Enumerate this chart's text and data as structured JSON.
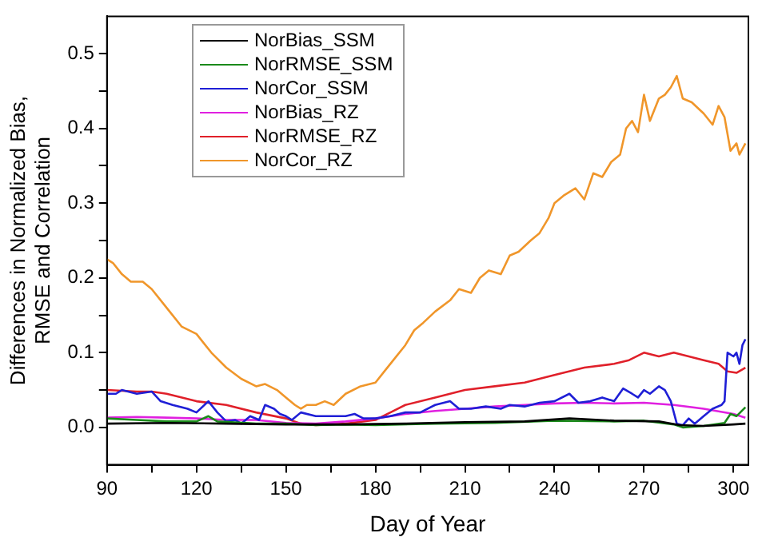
{
  "chart_data": {
    "type": "line",
    "xlabel": "Day of Year",
    "ylabel": "Differences in Normalized Bias,\nRMSE and Correlation",
    "xlim": [
      90,
      305
    ],
    "ylim": [
      -0.05,
      0.55
    ],
    "xticks": [
      90,
      {
        "value": 105,
        "label": null
      },
      120,
      {
        "value": 135,
        "label": null
      },
      150,
      {
        "value": 165,
        "label": null
      },
      180,
      {
        "value": 195,
        "label": null
      },
      210,
      {
        "value": 225,
        "label": null
      },
      240,
      {
        "value": 255,
        "label": null
      },
      270,
      {
        "value": 285,
        "label": null
      },
      300
    ],
    "yticks": [
      {
        "value": 0,
        "label": "0.0"
      },
      {
        "value": 0.05,
        "label": null
      },
      0.1,
      {
        "value": 0.15,
        "label": null
      },
      0.2,
      {
        "value": 0.25,
        "label": null
      },
      0.3,
      {
        "value": 0.35,
        "label": null
      },
      0.4,
      {
        "value": 0.45,
        "label": null
      },
      0.5
    ],
    "grid": false,
    "legend": "top left",
    "marker": "none",
    "line_style": "solid",
    "series": [
      {
        "name": "NorBias_SSM",
        "color": "#000000",
        "x": [
          90,
          110,
          130,
          150,
          170,
          190,
          210,
          230,
          245,
          260,
          275,
          282,
          290,
          300,
          304
        ],
        "values": [
          0.005,
          0.006,
          0.005,
          0.004,
          0.004,
          0.005,
          0.007,
          0.008,
          0.012,
          0.009,
          0.008,
          0.003,
          0.002,
          0.004,
          0.005
        ]
      },
      {
        "name": "NorRMSE_SSM",
        "color": "#1a8a1a",
        "x": [
          90,
          100,
          110,
          120,
          124,
          127,
          140,
          150,
          160,
          170,
          180,
          200,
          220,
          240,
          260,
          270,
          280,
          283,
          290,
          297,
          299,
          301,
          304
        ],
        "values": [
          0.012,
          0.01,
          0.008,
          0.008,
          0.015,
          0.008,
          0.005,
          0.005,
          0.003,
          0.004,
          0.003,
          0.005,
          0.006,
          0.009,
          0.008,
          0.009,
          0.004,
          0.0,
          0.002,
          0.006,
          0.018,
          0.015,
          0.027
        ]
      },
      {
        "name": "NorCor_SSM",
        "color": "#1f1fd6",
        "x": [
          90,
          93,
          95,
          100,
          105,
          108,
          112,
          117,
          120,
          124,
          127,
          130,
          133,
          135,
          138,
          141,
          143,
          146,
          148,
          150,
          152,
          155,
          160,
          170,
          173,
          176,
          180,
          185,
          190,
          195,
          200,
          205,
          208,
          212,
          217,
          222,
          225,
          230,
          235,
          240,
          245,
          248,
          252,
          256,
          260,
          263,
          266,
          268,
          270,
          272,
          275,
          277,
          279,
          281,
          283,
          285,
          287,
          290,
          293,
          296,
          297,
          298,
          300,
          301,
          302,
          303,
          304
        ],
        "values": [
          0.045,
          0.045,
          0.05,
          0.045,
          0.048,
          0.035,
          0.03,
          0.025,
          0.02,
          0.035,
          0.02,
          0.008,
          0.01,
          0.005,
          0.015,
          0.01,
          0.03,
          0.025,
          0.018,
          0.015,
          0.01,
          0.02,
          0.015,
          0.015,
          0.018,
          0.012,
          0.012,
          0.015,
          0.02,
          0.02,
          0.03,
          0.035,
          0.025,
          0.025,
          0.028,
          0.025,
          0.03,
          0.028,
          0.033,
          0.035,
          0.045,
          0.033,
          0.035,
          0.04,
          0.035,
          0.052,
          0.045,
          0.04,
          0.05,
          0.045,
          0.055,
          0.05,
          0.035,
          0.005,
          0.003,
          0.012,
          0.005,
          0.015,
          0.025,
          0.03,
          0.035,
          0.1,
          0.095,
          0.1,
          0.085,
          0.11,
          0.118
        ]
      },
      {
        "name": "NorBias_RZ",
        "color": "#e020e0",
        "x": [
          90,
          100,
          110,
          120,
          130,
          140,
          150,
          160,
          170,
          180,
          190,
          200,
          210,
          220,
          230,
          240,
          250,
          260,
          270,
          280,
          290,
          300,
          304
        ],
        "values": [
          0.013,
          0.014,
          0.013,
          0.012,
          0.01,
          0.01,
          0.006,
          0.005,
          0.008,
          0.012,
          0.018,
          0.022,
          0.025,
          0.028,
          0.03,
          0.032,
          0.033,
          0.032,
          0.033,
          0.03,
          0.025,
          0.018,
          0.013
        ]
      },
      {
        "name": "NorRMSE_RZ",
        "color": "#e0202a",
        "x": [
          90,
          100,
          105,
          110,
          120,
          130,
          140,
          150,
          155,
          160,
          170,
          180,
          185,
          190,
          200,
          210,
          220,
          230,
          240,
          250,
          260,
          265,
          270,
          275,
          280,
          285,
          290,
          295,
          298,
          301,
          304
        ],
        "values": [
          0.05,
          0.048,
          0.048,
          0.045,
          0.035,
          0.03,
          0.02,
          0.012,
          0.005,
          0.003,
          0.005,
          0.01,
          0.02,
          0.03,
          0.04,
          0.05,
          0.055,
          0.06,
          0.07,
          0.08,
          0.085,
          0.09,
          0.1,
          0.095,
          0.1,
          0.095,
          0.09,
          0.085,
          0.075,
          0.073,
          0.08
        ]
      },
      {
        "name": "NorCor_RZ",
        "color": "#f0962a",
        "x": [
          90,
          92,
          95,
          98,
          102,
          105,
          110,
          115,
          120,
          125,
          130,
          135,
          140,
          143,
          147,
          150,
          153,
          155,
          157,
          160,
          163,
          166,
          170,
          175,
          180,
          183,
          186,
          190,
          193,
          196,
          200,
          205,
          208,
          212,
          215,
          218,
          222,
          225,
          228,
          232,
          235,
          238,
          240,
          243,
          247,
          250,
          253,
          256,
          259,
          262,
          264,
          266,
          268,
          270,
          272,
          275,
          277,
          279,
          281,
          283,
          286,
          290,
          293,
          295,
          297,
          299,
          301,
          302,
          304
        ],
        "values": [
          0.225,
          0.22,
          0.205,
          0.195,
          0.195,
          0.185,
          0.16,
          0.135,
          0.125,
          0.1,
          0.08,
          0.065,
          0.055,
          0.058,
          0.05,
          0.04,
          0.03,
          0.025,
          0.03,
          0.03,
          0.035,
          0.03,
          0.045,
          0.055,
          0.06,
          0.075,
          0.09,
          0.11,
          0.13,
          0.14,
          0.155,
          0.17,
          0.185,
          0.18,
          0.2,
          0.21,
          0.205,
          0.23,
          0.235,
          0.25,
          0.26,
          0.28,
          0.3,
          0.31,
          0.32,
          0.305,
          0.34,
          0.335,
          0.355,
          0.365,
          0.4,
          0.41,
          0.395,
          0.445,
          0.41,
          0.44,
          0.445,
          0.455,
          0.47,
          0.44,
          0.435,
          0.42,
          0.405,
          0.43,
          0.415,
          0.37,
          0.38,
          0.365,
          0.38
        ]
      }
    ]
  }
}
